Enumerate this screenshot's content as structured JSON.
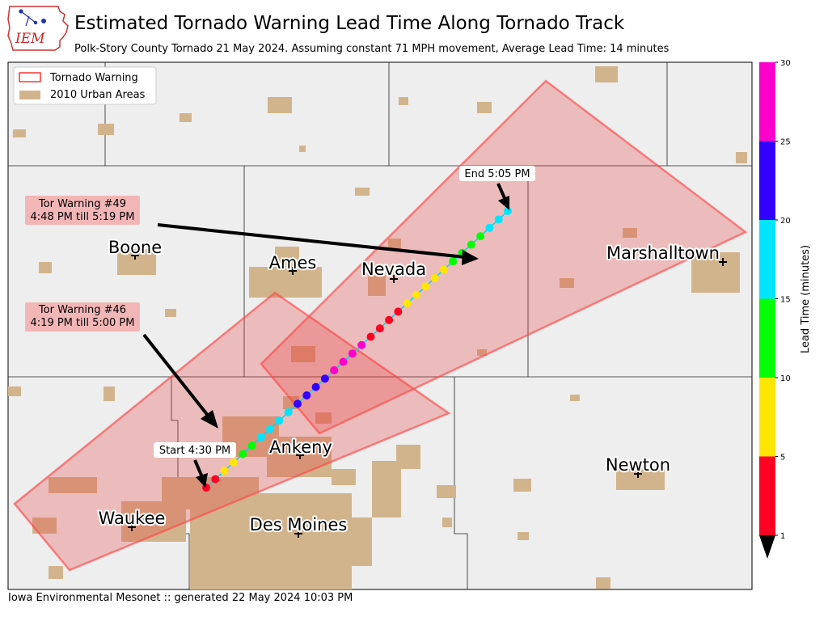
{
  "header": {
    "title": "Estimated Tornado Warning Lead Time Along Tornado Track",
    "subtitle": "Polk-Story County Tornado 21 May 2024. Assuming constant 71 MPH movement, Average Lead Time: 14 minutes",
    "logo_text": "IEM"
  },
  "footer": {
    "text": "Iowa Environmental Mesonet :: generated 22 May 2024 10:03 PM"
  },
  "legend": {
    "items": [
      {
        "label": "Tornado Warning",
        "color": "#ff0000"
      },
      {
        "label": "2010 Urban Areas",
        "color": "#d2b48c"
      }
    ]
  },
  "cities": [
    {
      "name": "Boone"
    },
    {
      "name": "Ames"
    },
    {
      "name": "Nevada"
    },
    {
      "name": "Marshalltown"
    },
    {
      "name": "Ankeny"
    },
    {
      "name": "Newton"
    },
    {
      "name": "Waukee"
    },
    {
      "name": "Des Moines"
    }
  ],
  "warnings": [
    {
      "line1": "Tor Warning #49",
      "line2": "4:48 PM till 5:19 PM"
    },
    {
      "line1": "Tor Warning #46",
      "line2": "4:19 PM till 5:00 PM"
    }
  ],
  "track": {
    "start_label": "Start 4:30 PM",
    "end_label": "End 5:05 PM",
    "lead_times": [
      2,
      4,
      6,
      8,
      11,
      14,
      16,
      17,
      18,
      19,
      21,
      22,
      23,
      24,
      26,
      27,
      28,
      29,
      1,
      2,
      3,
      4,
      5,
      6,
      7,
      8,
      9,
      11,
      12,
      13,
      14,
      16,
      17,
      18
    ]
  },
  "colorbar": {
    "label": "Lead Time (minutes)",
    "ticks": [
      "30",
      "25",
      "20",
      "15",
      "10",
      "5",
      "1"
    ],
    "colors": [
      "#ff00cc",
      "#3300ff",
      "#00e5ff",
      "#00ff00",
      "#ffe600",
      "#ff0022"
    ],
    "under_color": "#000000"
  }
}
